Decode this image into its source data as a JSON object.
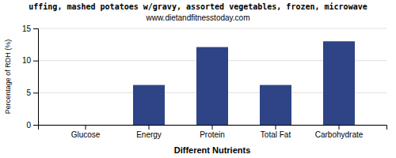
{
  "chart_data": {
    "type": "bar",
    "title": "uffing, mashed potatoes w/gravy, assorted vegetables, frozen, microwave",
    "subtitle": "www.dietandfitnesstoday.com",
    "xlabel": "Different Nutrients",
    "ylabel": "Percentage of RDH (%)",
    "categories": [
      "Glucose",
      "Energy",
      "Protein",
      "Total Fat",
      "Carbohydrate"
    ],
    "values": [
      0.0,
      6.2,
      12.1,
      6.2,
      13.0
    ],
    "color": "#2e4487",
    "ylim": [
      0,
      15
    ],
    "yticks": [
      0,
      5,
      10,
      15
    ],
    "grid": true
  }
}
